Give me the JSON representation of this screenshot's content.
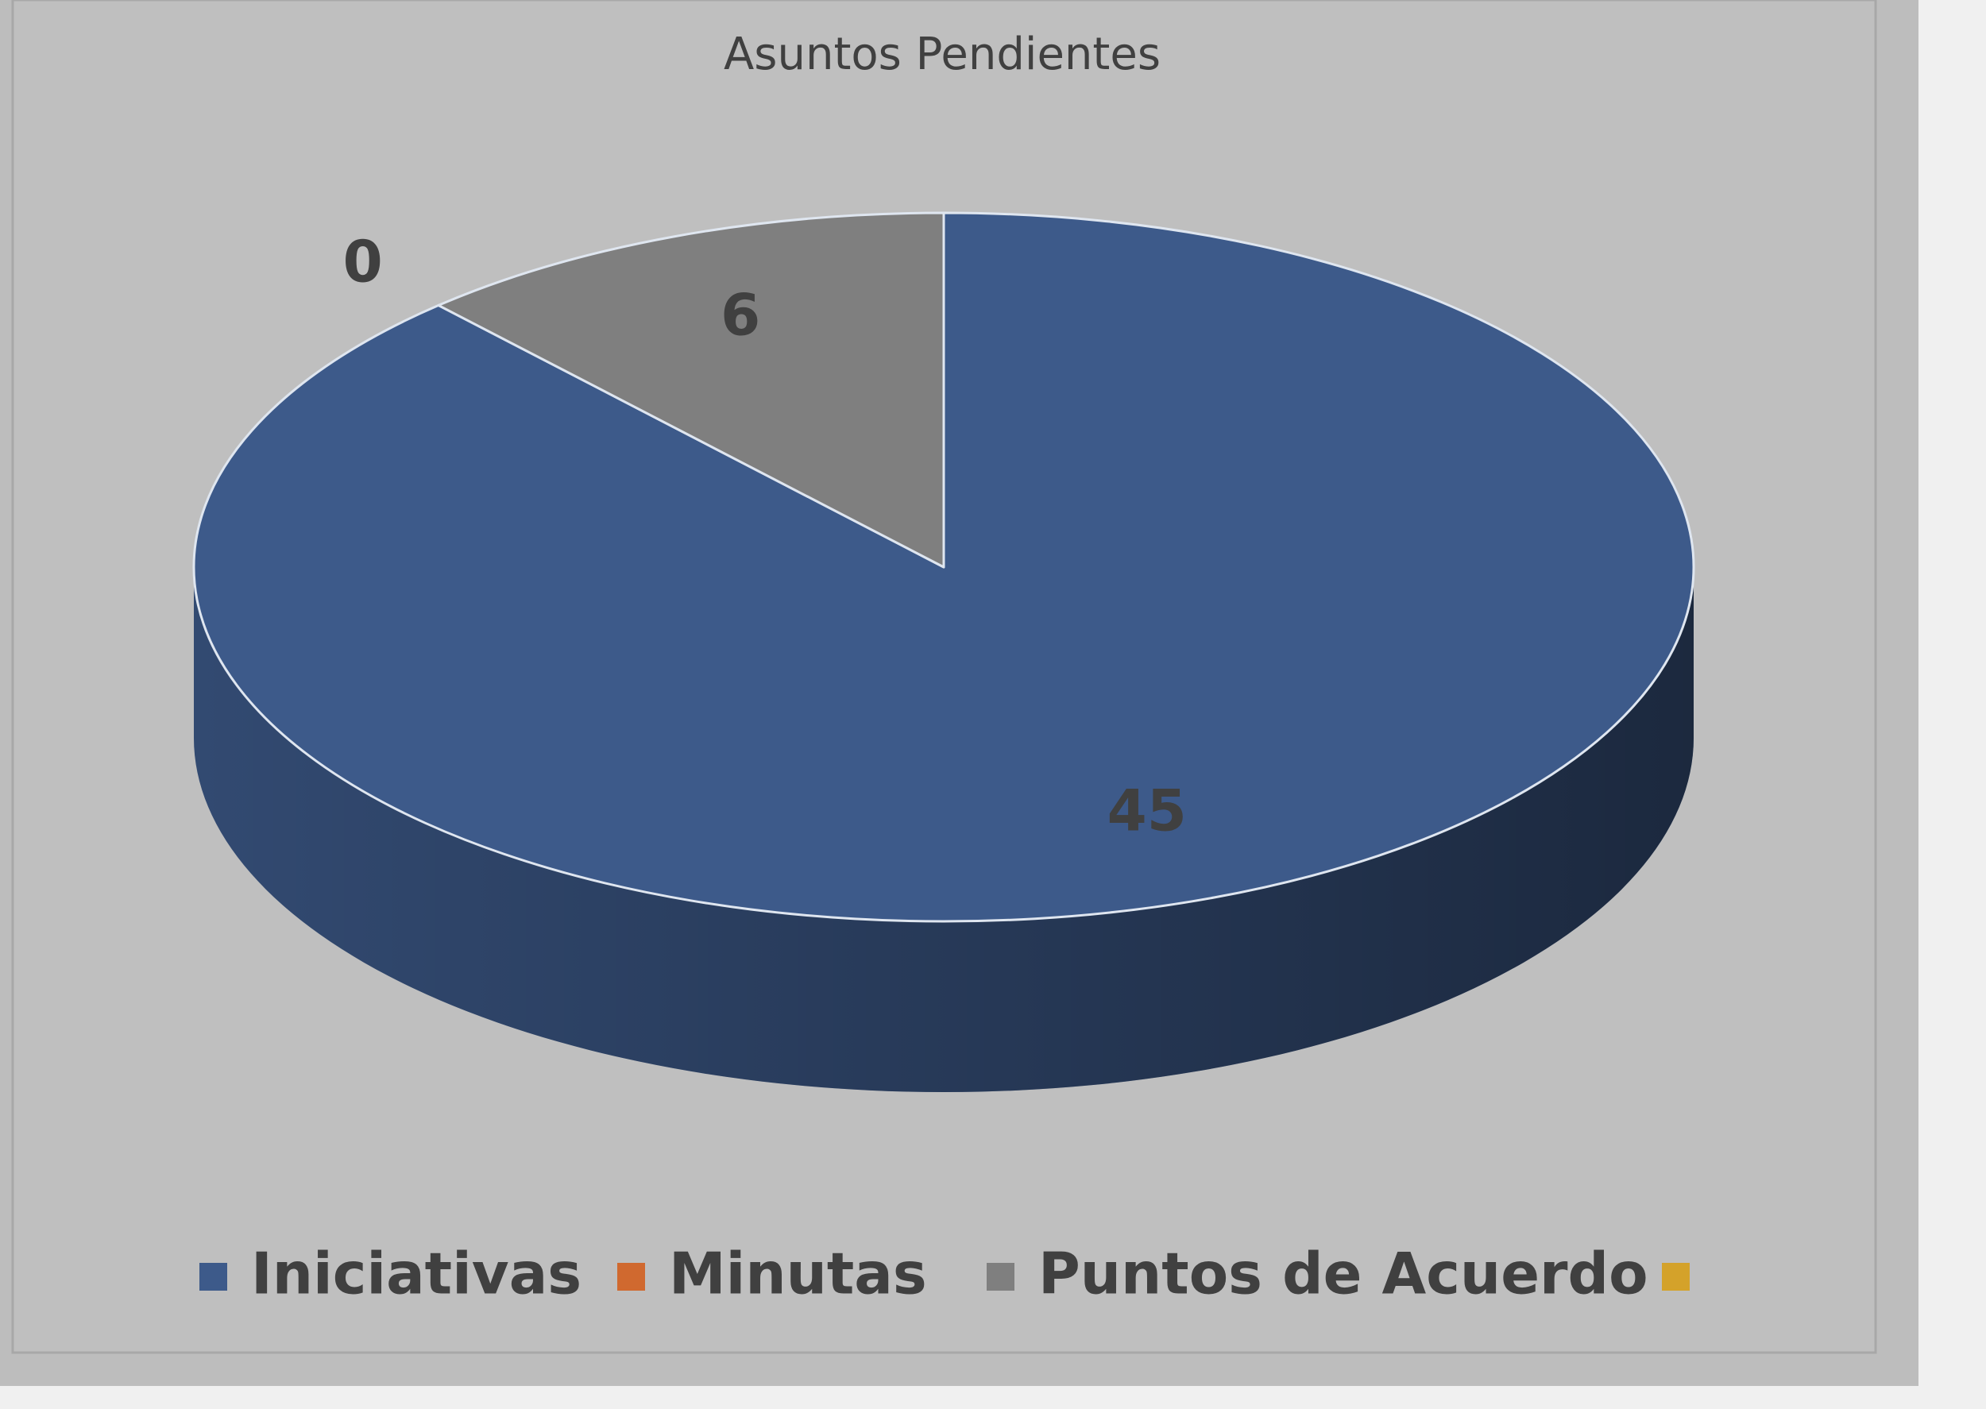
{
  "chart_data": {
    "type": "pie3d",
    "title": "Asuntos Pendientes",
    "categories": [
      "Iniciativas",
      "Minutas",
      "Puntos de Acuerdo",
      null
    ],
    "values": [
      45,
      0,
      6,
      null
    ],
    "colors": [
      "#3d5a8a",
      "#d0692f",
      "#7f7f7f",
      "#d4a22a"
    ],
    "legend": "bottom"
  }
}
